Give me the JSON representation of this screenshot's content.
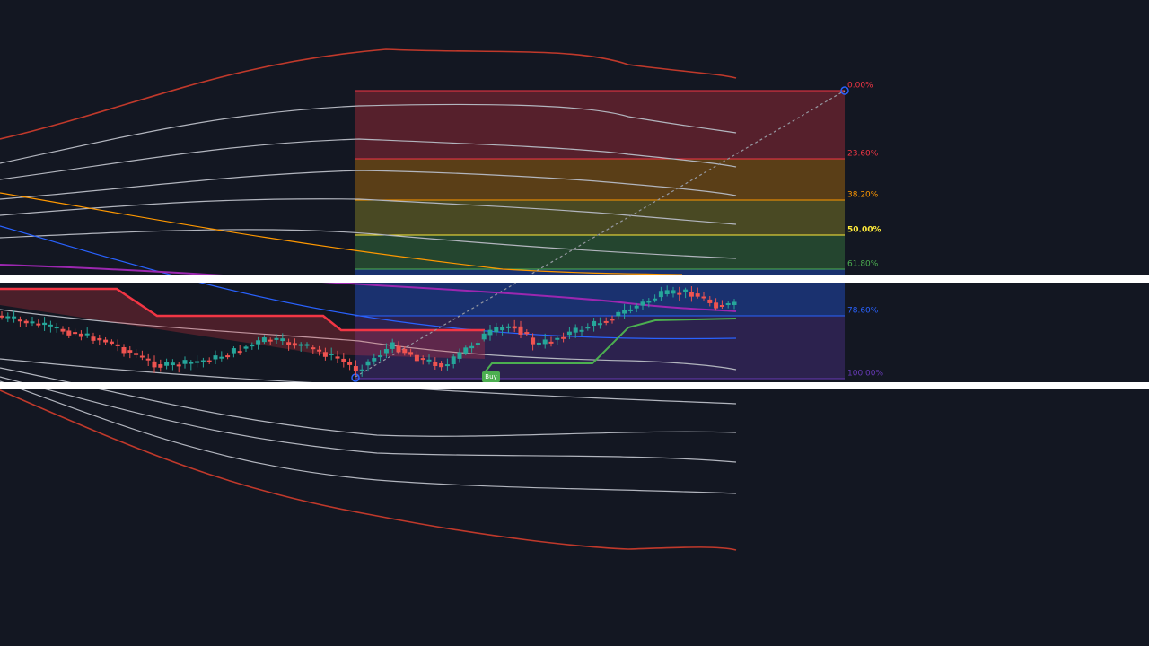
{
  "fib_levels": [
    {
      "label": "0.00%",
      "color": "#f23645"
    },
    {
      "label": "23.60%",
      "color": "#f23645"
    },
    {
      "label": "38.20%",
      "color": "#ff9800"
    },
    {
      "label": "50.00%",
      "color": "#ffeb3b"
    },
    {
      "label": "61.80%",
      "color": "#4caf50"
    },
    {
      "label": "78.60%",
      "color": "#2962ff"
    },
    {
      "label": "100.00%",
      "color": "#673ab7"
    }
  ],
  "signal": {
    "label": "Buy"
  }
}
